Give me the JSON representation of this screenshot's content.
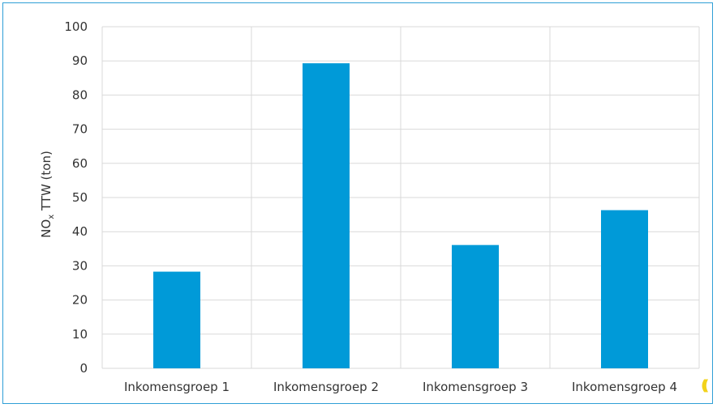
{
  "chart_data": {
    "type": "bar",
    "categories": [
      "Inkomensgroep 1",
      "Inkomensgroep 2",
      "Inkomensgroep 3",
      "Inkomensgroep 4"
    ],
    "values": [
      28.3,
      89.3,
      36.1,
      46.3
    ],
    "ylabel_main": "NO",
    "ylabel_sub": "x",
    "ylabel_rest": " TTW (ton)",
    "ylim": [
      0,
      100
    ],
    "yticks": [
      "0",
      "10",
      "20",
      "30",
      "40",
      "50",
      "60",
      "70",
      "80",
      "90",
      "100"
    ],
    "grid": true,
    "bar_color": "#009ad8",
    "grid_color": "#d9d9d9",
    "border_color": "#2f9fd6"
  },
  "logo": {
    "color": "#f2d21b"
  }
}
